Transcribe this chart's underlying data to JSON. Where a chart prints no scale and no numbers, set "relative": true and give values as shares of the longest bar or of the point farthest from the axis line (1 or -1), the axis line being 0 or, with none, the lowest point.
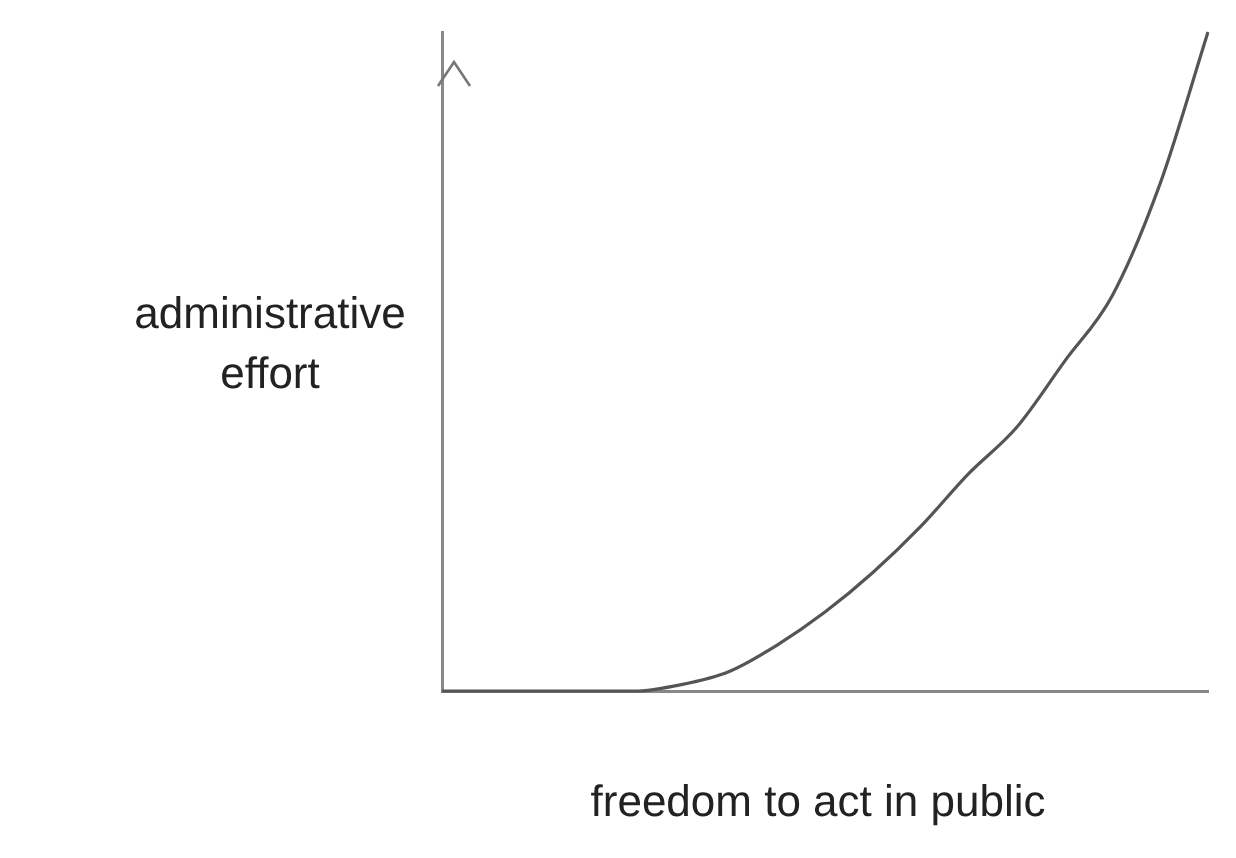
{
  "chart_data": {
    "type": "line",
    "relative": true,
    "xlabel": "freedom to act in public",
    "ylabel": "administrative effort",
    "categories": [
      null,
      null,
      null,
      null,
      null,
      null,
      null,
      null,
      null,
      null,
      null,
      null,
      null,
      null,
      null,
      null,
      null
    ],
    "series": [
      {
        "color": "#555555",
        "values": [
          0,
          0,
          0,
          0,
          0,
          0.01,
          0.03,
          0.07,
          0.12,
          0.18,
          0.25,
          0.33,
          0.4,
          0.5,
          0.6,
          0.77,
          1
        ]
      }
    ],
    "grid": false,
    "legend": false,
    "marker": "none",
    "line_style": "solid"
  }
}
